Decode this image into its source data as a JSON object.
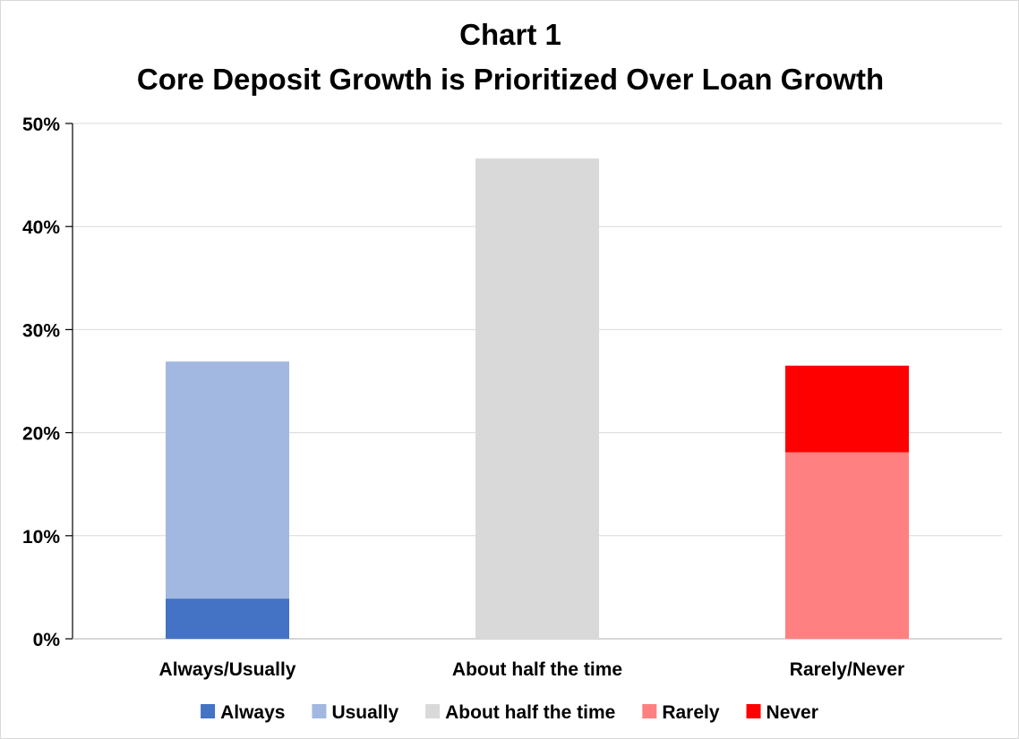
{
  "chart_data": {
    "type": "bar",
    "stacked": true,
    "title": "Chart 1",
    "subtitle": "Core Deposit Growth is Prioritized Over Loan Growth",
    "xlabel": "",
    "ylabel": "",
    "ylim": [
      0,
      50
    ],
    "yticks": [
      "0%",
      "10%",
      "20%",
      "30%",
      "40%",
      "50%"
    ],
    "ytick_values": [
      0,
      10,
      20,
      30,
      40,
      50
    ],
    "grid": true,
    "legend_position": "bottom",
    "categories": [
      "Always/Usually",
      "About half the time",
      "Rarely/Never"
    ],
    "series": [
      {
        "name": "Always",
        "color": "#4472c4",
        "values": [
          3.9,
          0,
          0
        ]
      },
      {
        "name": "Usually",
        "color": "#a2b8e0",
        "values": [
          23.0,
          0,
          0
        ]
      },
      {
        "name": "About half the time",
        "color": "#d9d9d9",
        "values": [
          0,
          46.6,
          0
        ]
      },
      {
        "name": "Rarely",
        "color": "#ff8080",
        "values": [
          0,
          0,
          18.1
        ]
      },
      {
        "name": "Never",
        "color": "#ff0000",
        "values": [
          0,
          0,
          8.4
        ]
      }
    ]
  }
}
